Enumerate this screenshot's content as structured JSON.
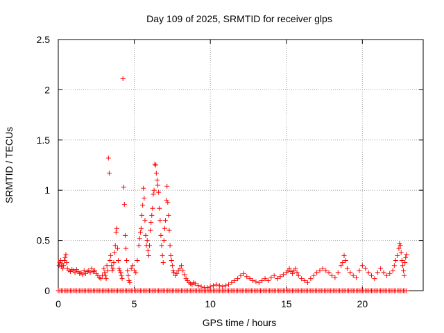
{
  "chart_data": {
    "type": "scatter",
    "title": "Day 109 of 2025, SRMTID for receiver glps",
    "xlabel": "GPS time / hours",
    "ylabel": "SRMTID / TECUs",
    "xlim": [
      0,
      24
    ],
    "ylim": [
      0,
      2.5
    ],
    "xticks": [
      0,
      5,
      10,
      15,
      20
    ],
    "xtick_labels": [
      "0",
      "5",
      "10",
      "15",
      "20"
    ],
    "yticks": [
      0,
      0.5,
      1,
      1.5,
      2,
      2.5
    ],
    "ytick_labels": [
      "0",
      "0.5",
      "1",
      "1.5",
      "2",
      "2.5"
    ],
    "grid": true,
    "marker": "+",
    "series": [
      {
        "name": "SRMTID",
        "color": "#ff0000",
        "points": [
          [
            0.05,
            0.25
          ],
          [
            0.1,
            0.28
          ],
          [
            0.15,
            0.3
          ],
          [
            0.2,
            0.24
          ],
          [
            0.25,
            0.27
          ],
          [
            0.3,
            0.22
          ],
          [
            0.35,
            0.25
          ],
          [
            0.4,
            0.3
          ],
          [
            0.45,
            0.33
          ],
          [
            0.5,
            0.36
          ],
          [
            0.55,
            0.28
          ],
          [
            0.6,
            0.22
          ],
          [
            0.7,
            0.2
          ],
          [
            0.8,
            0.19
          ],
          [
            0.9,
            0.21
          ],
          [
            1.0,
            0.2
          ],
          [
            1.1,
            0.18
          ],
          [
            1.2,
            0.21
          ],
          [
            1.3,
            0.19
          ],
          [
            1.4,
            0.17
          ],
          [
            1.5,
            0.18
          ],
          [
            1.6,
            0.16
          ],
          [
            1.7,
            0.2
          ],
          [
            1.8,
            0.17
          ],
          [
            1.9,
            0.19
          ],
          [
            2.0,
            0.2
          ],
          [
            2.1,
            0.18
          ],
          [
            2.2,
            0.22
          ],
          [
            2.3,
            0.19
          ],
          [
            2.4,
            0.2
          ],
          [
            2.5,
            0.17
          ],
          [
            2.6,
            0.15
          ],
          [
            2.7,
            0.13
          ],
          [
            2.8,
            0.12
          ],
          [
            2.9,
            0.15
          ],
          [
            3.0,
            0.22
          ],
          [
            3.05,
            0.18
          ],
          [
            3.1,
            0.15
          ],
          [
            3.15,
            0.12
          ],
          [
            3.2,
            0.25
          ],
          [
            3.25,
            0.2
          ],
          [
            3.3,
            1.32
          ],
          [
            3.35,
            1.17
          ],
          [
            3.4,
            0.3
          ],
          [
            3.45,
            0.35
          ],
          [
            3.5,
            0.25
          ],
          [
            3.55,
            0.2
          ],
          [
            3.6,
            0.22
          ],
          [
            3.65,
            0.28
          ],
          [
            3.7,
            0.38
          ],
          [
            3.75,
            0.45
          ],
          [
            3.8,
            0.58
          ],
          [
            3.85,
            0.62
          ],
          [
            3.9,
            0.42
          ],
          [
            3.95,
            0.3
          ],
          [
            4.0,
            0.22
          ],
          [
            4.05,
            0.2
          ],
          [
            4.1,
            0.18
          ],
          [
            4.15,
            0.15
          ],
          [
            4.2,
            0.12
          ],
          [
            4.25,
            2.11
          ],
          [
            4.3,
            1.03
          ],
          [
            4.35,
            0.86
          ],
          [
            4.4,
            0.55
          ],
          [
            4.45,
            0.42
          ],
          [
            4.5,
            0.3
          ],
          [
            4.55,
            0.2
          ],
          [
            4.6,
            0.15
          ],
          [
            4.65,
            0.1
          ],
          [
            4.7,
            0.08
          ],
          [
            4.8,
            0.22
          ],
          [
            4.9,
            0.25
          ],
          [
            5.0,
            0.2
          ],
          [
            5.1,
            0.18
          ],
          [
            5.2,
            0.3
          ],
          [
            5.3,
            0.45
          ],
          [
            5.35,
            0.52
          ],
          [
            5.4,
            0.58
          ],
          [
            5.45,
            0.62
          ],
          [
            5.5,
            0.75
          ],
          [
            5.55,
            0.85
          ],
          [
            5.6,
            1.02
          ],
          [
            5.65,
            0.92
          ],
          [
            5.7,
            0.7
          ],
          [
            5.75,
            0.55
          ],
          [
            5.8,
            0.45
          ],
          [
            5.85,
            0.5
          ],
          [
            5.9,
            0.4
          ],
          [
            5.95,
            0.35
          ],
          [
            6.0,
            0.45
          ],
          [
            6.05,
            0.6
          ],
          [
            6.1,
            0.68
          ],
          [
            6.15,
            0.75
          ],
          [
            6.2,
            0.82
          ],
          [
            6.25,
            0.96
          ],
          [
            6.3,
            1.0
          ],
          [
            6.35,
            1.26
          ],
          [
            6.4,
            1.25
          ],
          [
            6.45,
            1.17
          ],
          [
            6.5,
            1.1
          ],
          [
            6.55,
            1.05
          ],
          [
            6.6,
            0.98
          ],
          [
            6.65,
            0.82
          ],
          [
            6.7,
            0.7
          ],
          [
            6.75,
            0.55
          ],
          [
            6.8,
            0.45
          ],
          [
            6.85,
            0.35
          ],
          [
            6.9,
            0.28
          ],
          [
            6.95,
            0.5
          ],
          [
            7.0,
            0.62
          ],
          [
            7.05,
            0.7
          ],
          [
            7.1,
            0.9
          ],
          [
            7.15,
            1.04
          ],
          [
            7.2,
            0.88
          ],
          [
            7.25,
            0.75
          ],
          [
            7.3,
            0.6
          ],
          [
            7.35,
            0.45
          ],
          [
            7.4,
            0.35
          ],
          [
            7.45,
            0.3
          ],
          [
            7.5,
            0.25
          ],
          [
            7.55,
            0.2
          ],
          [
            7.6,
            0.18
          ],
          [
            7.7,
            0.15
          ],
          [
            7.8,
            0.17
          ],
          [
            7.9,
            0.2
          ],
          [
            8.0,
            0.22
          ],
          [
            8.1,
            0.25
          ],
          [
            8.2,
            0.2
          ],
          [
            8.3,
            0.16
          ],
          [
            8.4,
            0.12
          ],
          [
            8.5,
            0.1
          ],
          [
            8.6,
            0.08
          ],
          [
            8.7,
            0.07
          ],
          [
            8.8,
            0.06
          ],
          [
            8.9,
            0.08
          ],
          [
            9.0,
            0.07
          ],
          [
            9.2,
            0.05
          ],
          [
            9.4,
            0.04
          ],
          [
            9.6,
            0.03
          ],
          [
            9.8,
            0.03
          ],
          [
            10.0,
            0.04
          ],
          [
            10.2,
            0.05
          ],
          [
            10.4,
            0.06
          ],
          [
            10.6,
            0.05
          ],
          [
            10.8,
            0.04
          ],
          [
            11.0,
            0.05
          ],
          [
            11.2,
            0.06
          ],
          [
            11.4,
            0.08
          ],
          [
            11.6,
            0.1
          ],
          [
            11.8,
            0.12
          ],
          [
            12.0,
            0.15
          ],
          [
            12.2,
            0.17
          ],
          [
            12.4,
            0.14
          ],
          [
            12.6,
            0.12
          ],
          [
            12.8,
            0.1
          ],
          [
            13.0,
            0.09
          ],
          [
            13.2,
            0.08
          ],
          [
            13.4,
            0.1
          ],
          [
            13.6,
            0.12
          ],
          [
            13.8,
            0.1
          ],
          [
            14.0,
            0.13
          ],
          [
            14.2,
            0.15
          ],
          [
            14.4,
            0.12
          ],
          [
            14.6,
            0.14
          ],
          [
            14.8,
            0.16
          ],
          [
            15.0,
            0.18
          ],
          [
            15.1,
            0.2
          ],
          [
            15.2,
            0.22
          ],
          [
            15.3,
            0.19
          ],
          [
            15.4,
            0.17
          ],
          [
            15.5,
            0.2
          ],
          [
            15.6,
            0.22
          ],
          [
            15.7,
            0.18
          ],
          [
            15.8,
            0.15
          ],
          [
            16.0,
            0.12
          ],
          [
            16.2,
            0.1
          ],
          [
            16.4,
            0.08
          ],
          [
            16.6,
            0.12
          ],
          [
            16.8,
            0.15
          ],
          [
            17.0,
            0.18
          ],
          [
            17.2,
            0.2
          ],
          [
            17.4,
            0.22
          ],
          [
            17.6,
            0.2
          ],
          [
            17.8,
            0.18
          ],
          [
            18.0,
            0.15
          ],
          [
            18.2,
            0.13
          ],
          [
            18.4,
            0.18
          ],
          [
            18.6,
            0.25
          ],
          [
            18.7,
            0.28
          ],
          [
            18.8,
            0.35
          ],
          [
            18.9,
            0.3
          ],
          [
            19.0,
            0.22
          ],
          [
            19.2,
            0.18
          ],
          [
            19.4,
            0.15
          ],
          [
            19.6,
            0.13
          ],
          [
            19.8,
            0.2
          ],
          [
            20.0,
            0.25
          ],
          [
            20.2,
            0.22
          ],
          [
            20.4,
            0.18
          ],
          [
            20.6,
            0.15
          ],
          [
            20.8,
            0.12
          ],
          [
            21.0,
            0.18
          ],
          [
            21.2,
            0.22
          ],
          [
            21.4,
            0.18
          ],
          [
            21.6,
            0.15
          ],
          [
            21.8,
            0.17
          ],
          [
            22.0,
            0.2
          ],
          [
            22.1,
            0.25
          ],
          [
            22.2,
            0.3
          ],
          [
            22.3,
            0.35
          ],
          [
            22.4,
            0.42
          ],
          [
            22.45,
            0.47
          ],
          [
            22.5,
            0.45
          ],
          [
            22.55,
            0.38
          ],
          [
            22.6,
            0.3
          ],
          [
            22.65,
            0.25
          ],
          [
            22.7,
            0.2
          ],
          [
            22.75,
            0.15
          ],
          [
            22.8,
            0.28
          ],
          [
            22.85,
            0.33
          ],
          [
            22.9,
            0.36
          ]
        ]
      }
    ],
    "zero_baseline": {
      "x_start": 0.0,
      "x_end": 22.9,
      "y": 0.0
    }
  }
}
